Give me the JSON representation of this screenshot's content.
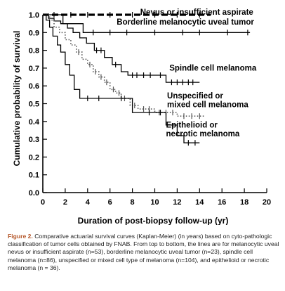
{
  "chart_data": {
    "type": "line",
    "subtype": "kaplan-meier step",
    "xlabel": "Duration of post-biopsy follow-up (yr)",
    "ylabel": "Cumulative probability of survival",
    "xlim": [
      0,
      20
    ],
    "ylim": [
      0,
      1.0
    ],
    "x_ticks": [
      0,
      2,
      4,
      6,
      8,
      10,
      12,
      14,
      16,
      18,
      20
    ],
    "y_ticks": [
      "0.0",
      "0.1",
      "0.2",
      "0.3",
      "0.4",
      "0.5",
      "0.6",
      "0.7",
      "0.8",
      "0.9",
      "1.0"
    ],
    "grid": false,
    "series": [
      {
        "name": "Nevus or insufficient aspirate",
        "style": "thick-dashed",
        "points": [
          [
            0,
            1.0
          ],
          [
            15,
            1.0
          ]
        ],
        "censored": [
          1,
          2.5,
          4,
          6,
          8,
          10,
          12,
          14
        ],
        "label_at": [
          8.7,
          1.0
        ]
      },
      {
        "name": "Borderline melanocytic uveal tumor",
        "style": "solid",
        "points": [
          [
            0,
            1.0
          ],
          [
            1.8,
            1.0
          ],
          [
            1.8,
            0.95
          ],
          [
            3.6,
            0.95
          ],
          [
            3.6,
            0.9
          ],
          [
            18.5,
            0.9
          ]
        ],
        "censored": [
          4.5,
          6,
          7.5,
          10,
          12.5,
          14,
          16.5,
          18.3
        ],
        "label_at": [
          6.6,
          0.945
        ]
      },
      {
        "name": "Spindle cell melanoma",
        "style": "solid",
        "points": [
          [
            0,
            1.0
          ],
          [
            0.5,
            1.0
          ],
          [
            0.5,
            0.98
          ],
          [
            1.0,
            0.98
          ],
          [
            1.0,
            0.965
          ],
          [
            1.6,
            0.965
          ],
          [
            1.6,
            0.95
          ],
          [
            2.2,
            0.95
          ],
          [
            2.2,
            0.925
          ],
          [
            2.7,
            0.925
          ],
          [
            2.7,
            0.9
          ],
          [
            3.3,
            0.9
          ],
          [
            3.3,
            0.87
          ],
          [
            3.9,
            0.87
          ],
          [
            3.9,
            0.84
          ],
          [
            4.6,
            0.84
          ],
          [
            4.6,
            0.8
          ],
          [
            5.5,
            0.8
          ],
          [
            5.5,
            0.76
          ],
          [
            6.2,
            0.76
          ],
          [
            6.2,
            0.72
          ],
          [
            7.0,
            0.72
          ],
          [
            7.0,
            0.68
          ],
          [
            7.6,
            0.68
          ],
          [
            7.6,
            0.66
          ],
          [
            11.0,
            0.66
          ],
          [
            11.0,
            0.62
          ],
          [
            14.0,
            0.62
          ]
        ],
        "censored": [
          4.8,
          5.2,
          6.5,
          8.0,
          8.4,
          9.0,
          9.6,
          10.5,
          11.5,
          12.0,
          12.5,
          13.0,
          13.4
        ],
        "label_at": [
          11.3,
          0.685
        ]
      },
      {
        "name": "Unspecified or mixed cell melanoma",
        "style": "dotted",
        "points": [
          [
            0,
            1.0
          ],
          [
            0.6,
            1.0
          ],
          [
            0.6,
            0.97
          ],
          [
            1.0,
            0.97
          ],
          [
            1.0,
            0.93
          ],
          [
            1.5,
            0.93
          ],
          [
            1.5,
            0.9
          ],
          [
            2.0,
            0.9
          ],
          [
            2.0,
            0.86
          ],
          [
            2.5,
            0.86
          ],
          [
            2.5,
            0.83
          ],
          [
            3.0,
            0.83
          ],
          [
            3.0,
            0.79
          ],
          [
            3.5,
            0.79
          ],
          [
            3.5,
            0.75
          ],
          [
            4.0,
            0.75
          ],
          [
            4.0,
            0.72
          ],
          [
            4.5,
            0.72
          ],
          [
            4.5,
            0.68
          ],
          [
            5.0,
            0.68
          ],
          [
            5.0,
            0.65
          ],
          [
            5.5,
            0.65
          ],
          [
            5.5,
            0.62
          ],
          [
            6.0,
            0.62
          ],
          [
            6.0,
            0.58
          ],
          [
            6.5,
            0.58
          ],
          [
            6.5,
            0.56
          ],
          [
            7.0,
            0.56
          ],
          [
            7.0,
            0.53
          ],
          [
            7.8,
            0.53
          ],
          [
            7.8,
            0.49
          ],
          [
            8.5,
            0.49
          ],
          [
            8.5,
            0.47
          ],
          [
            10.0,
            0.47
          ],
          [
            10.0,
            0.45
          ],
          [
            12.0,
            0.45
          ],
          [
            12.0,
            0.43
          ],
          [
            14.5,
            0.43
          ]
        ],
        "censored": [
          3.2,
          4.2,
          4.7,
          5.2,
          5.7,
          6.3,
          6.8,
          7.3,
          8.2,
          9.0,
          9.5,
          10.4,
          11.0,
          11.6,
          12.6,
          13.3,
          14.0
        ],
        "label_at": [
          11.1,
          0.53
        ]
      },
      {
        "name": "Epithelioid or necrotic melanoma",
        "style": "solid",
        "points": [
          [
            0,
            1.0
          ],
          [
            0.3,
            1.0
          ],
          [
            0.3,
            0.97
          ],
          [
            0.6,
            0.97
          ],
          [
            0.6,
            0.93
          ],
          [
            0.9,
            0.93
          ],
          [
            0.9,
            0.88
          ],
          [
            1.3,
            0.88
          ],
          [
            1.3,
            0.83
          ],
          [
            1.6,
            0.83
          ],
          [
            1.6,
            0.79
          ],
          [
            2.0,
            0.79
          ],
          [
            2.0,
            0.72
          ],
          [
            2.4,
            0.72
          ],
          [
            2.4,
            0.66
          ],
          [
            2.8,
            0.66
          ],
          [
            2.8,
            0.58
          ],
          [
            3.3,
            0.58
          ],
          [
            3.3,
            0.53
          ],
          [
            8.0,
            0.53
          ],
          [
            8.0,
            0.45
          ],
          [
            11.0,
            0.45
          ],
          [
            11.0,
            0.38
          ],
          [
            12.0,
            0.38
          ],
          [
            12.0,
            0.32
          ],
          [
            12.6,
            0.32
          ],
          [
            12.6,
            0.28
          ],
          [
            14.0,
            0.28
          ]
        ],
        "censored": [
          4.0,
          5.0,
          7.0,
          9.5,
          10.5,
          13.0,
          13.6
        ],
        "label_at": [
          11.0,
          0.365
        ]
      }
    ]
  },
  "caption": {
    "figure_label": "Figure 2.",
    "text": " Comparative actuarial survival curves (Kaplan-Meier) (in years) based on cyto-pathologic classification of tumor cells obtained by FNAB. From top to bottom, the lines are for melanocytic uveal nevus or insufficient aspirate (n=53), borderline melanocytic uveal tumor (n=23), spindle cell melanoma (n=86), unspecified or mixed cell type of melanoma (n=104), and epithelioid or necrotic melanoma (n = 36)."
  }
}
